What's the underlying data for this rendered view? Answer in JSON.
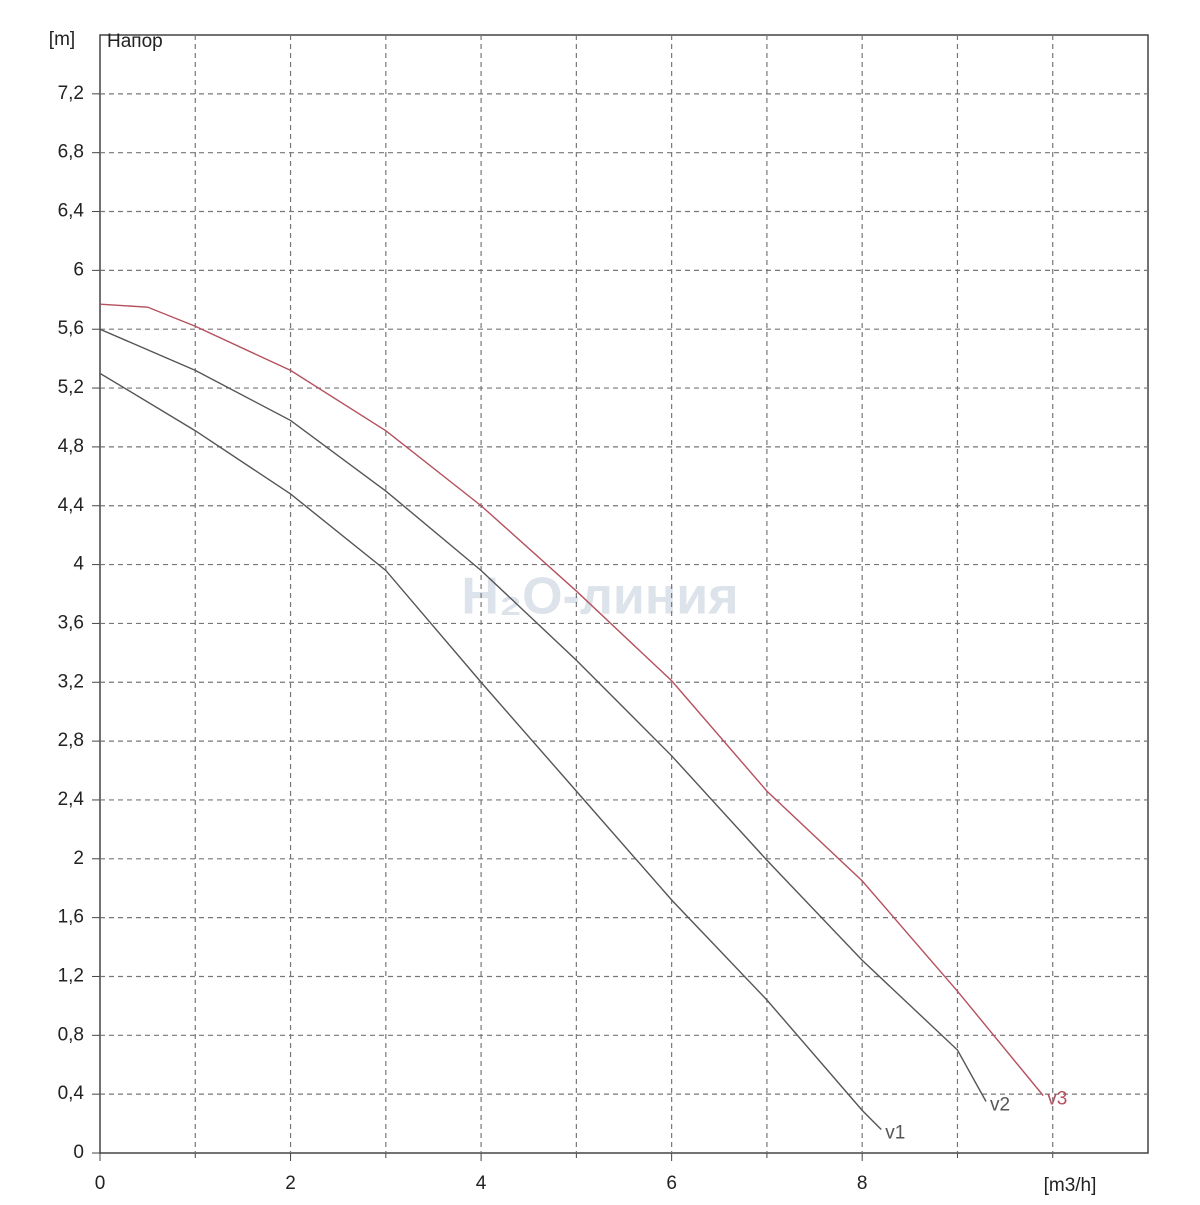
{
  "chart_data": {
    "type": "line",
    "annotation": "Напор",
    "watermark": "H₂O-линия",
    "x_unit": "[m3/h]",
    "y_unit": "[m]",
    "xlim": [
      0,
      11
    ],
    "ylim": [
      0,
      7.6
    ],
    "xticks": [
      0,
      2,
      4,
      6,
      8
    ],
    "x_minor_ticks": [
      1,
      3,
      5,
      7,
      9,
      10
    ],
    "yticks": [
      0,
      {
        "value": 0.4,
        "label": "0,4"
      },
      {
        "value": 0.8,
        "label": "0,8"
      },
      {
        "value": 1.2,
        "label": "1,2"
      },
      {
        "value": 1.6,
        "label": "1,6"
      },
      2,
      {
        "value": 2.4,
        "label": "2,4"
      },
      {
        "value": 2.8,
        "label": "2,8"
      },
      {
        "value": 3.2,
        "label": "3,2"
      },
      {
        "value": 3.6,
        "label": "3,6"
      },
      4,
      {
        "value": 4.4,
        "label": "4,4"
      },
      {
        "value": 4.8,
        "label": "4,8"
      },
      {
        "value": 5.2,
        "label": "5,2"
      },
      {
        "value": 5.6,
        "label": "5,6"
      },
      6,
      {
        "value": 6.4,
        "label": "6,4"
      },
      {
        "value": 6.8,
        "label": "6,8"
      },
      {
        "value": 7.2,
        "label": "7,2"
      }
    ],
    "grid": true,
    "series": [
      {
        "name": "v1",
        "color": "#555555",
        "x": [
          0,
          1,
          2,
          3,
          4,
          5,
          6,
          7,
          8,
          8.2
        ],
        "values": [
          5.3,
          4.91,
          4.48,
          3.96,
          3.2,
          2.46,
          1.72,
          1.04,
          0.29,
          0.16
        ]
      },
      {
        "name": "v2",
        "color": "#555555",
        "x": [
          0,
          1,
          2,
          3,
          4,
          5,
          6,
          7,
          8,
          9,
          9.3
        ],
        "values": [
          5.6,
          5.32,
          4.98,
          4.5,
          3.96,
          3.35,
          2.7,
          1.99,
          1.31,
          0.7,
          0.35
        ]
      },
      {
        "name": "v3",
        "color": "#b5505e",
        "x": [
          0,
          0.5,
          1,
          2,
          3,
          4,
          5,
          6,
          7,
          8,
          9,
          9.9
        ],
        "values": [
          5.77,
          5.75,
          5.62,
          5.32,
          4.91,
          4.4,
          3.82,
          3.21,
          2.46,
          1.85,
          1.1,
          0.39
        ]
      }
    ]
  }
}
